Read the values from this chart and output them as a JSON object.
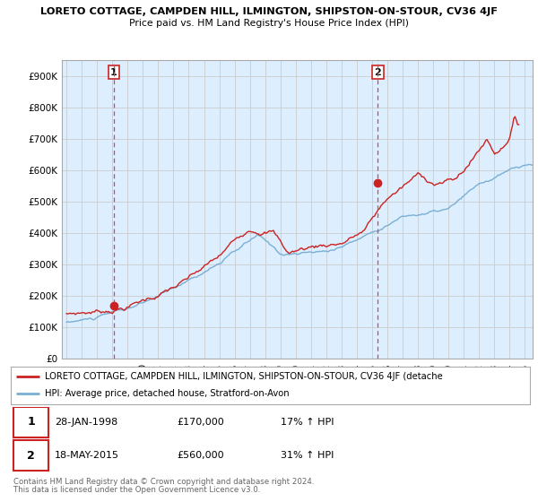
{
  "title1": "LORETO COTTAGE, CAMPDEN HILL, ILMINGTON, SHIPSTON-ON-STOUR, CV36 4JF",
  "title2": "Price paid vs. HM Land Registry's House Price Index (HPI)",
  "legend_line1": "LORETO COTTAGE, CAMPDEN HILL, ILMINGTON, SHIPSTON-ON-STOUR, CV36 4JF (detache",
  "legend_line2": "HPI: Average price, detached house, Stratford-on-Avon",
  "footer1": "Contains HM Land Registry data © Crown copyright and database right 2024.",
  "footer2": "This data is licensed under the Open Government Licence v3.0.",
  "sale1_date": "28-JAN-1998",
  "sale1_price": "£170,000",
  "sale1_hpi": "17% ↑ HPI",
  "sale2_date": "18-MAY-2015",
  "sale2_price": "£560,000",
  "sale2_hpi": "31% ↑ HPI",
  "hpi_color": "#7aafd4",
  "price_color": "#cc2222",
  "dashed_line_color": "#dd4444",
  "grid_color": "#cccccc",
  "chart_bg_color": "#ddeeff",
  "background_color": "#ffffff",
  "ylim": [
    0,
    950000
  ],
  "yticks": [
    0,
    100000,
    200000,
    300000,
    400000,
    500000,
    600000,
    700000,
    800000,
    900000
  ],
  "xlim_start": 1994.7,
  "xlim_end": 2025.5,
  "sale1_x": 1998.08,
  "sale1_y": 170000,
  "sale2_x": 2015.38,
  "sale2_y": 560000
}
